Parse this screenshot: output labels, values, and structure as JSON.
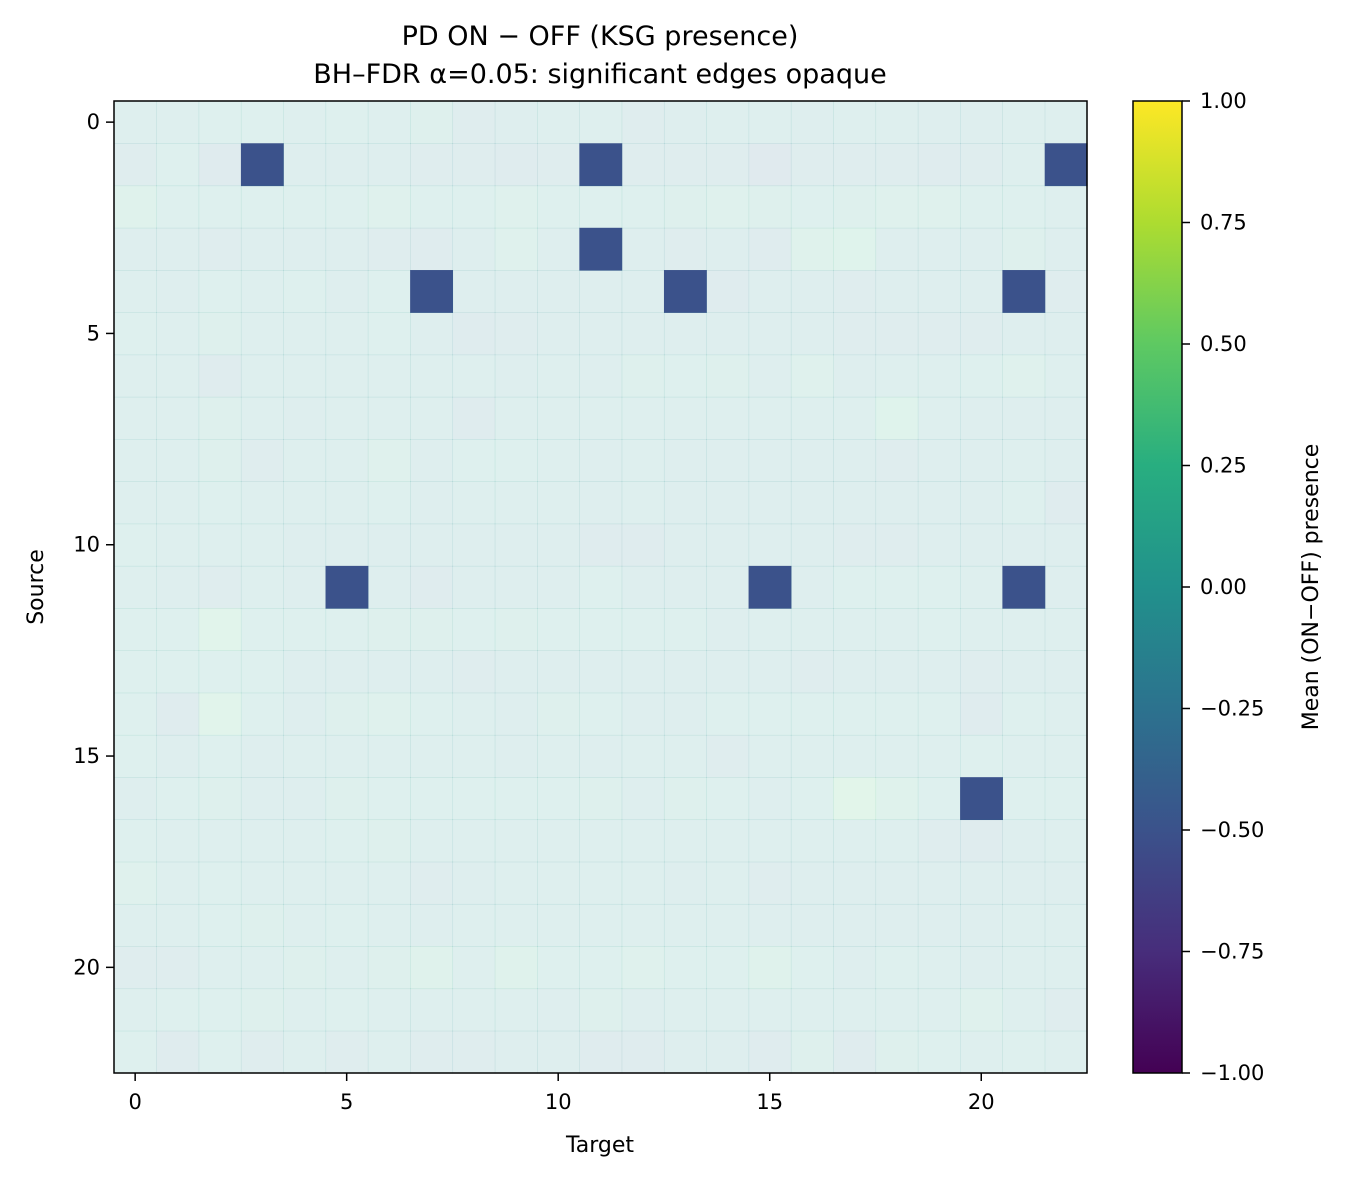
{
  "chart_data": {
    "type": "heatmap",
    "title": "PD ON − OFF (KSG presence)",
    "subtitle": "BH–FDR α=0.05: significant edges opaque",
    "xlabel": "Target",
    "ylabel": "Source",
    "n_rows": 23,
    "n_cols": 23,
    "x_ticks": [
      0,
      5,
      10,
      15,
      20
    ],
    "y_ticks": [
      0,
      5,
      10,
      15,
      20
    ],
    "colorbar": {
      "label": "Mean (ON−OFF) presence",
      "colormap": "viridis",
      "vmin": -1.0,
      "vmax": 1.0,
      "ticks": [
        1.0,
        0.75,
        0.5,
        0.25,
        0.0,
        -0.25,
        -0.5,
        -0.75,
        -1.0
      ],
      "tick_labels": [
        "1.00",
        "0.75",
        "0.50",
        "0.25",
        "0.00",
        "−0.25",
        "−0.50",
        "−0.75",
        "−1.00"
      ]
    },
    "significant_edges": [
      {
        "source": 1,
        "target": 3,
        "value": -0.5
      },
      {
        "source": 1,
        "target": 11,
        "value": -0.5
      },
      {
        "source": 1,
        "target": 22,
        "value": -0.5
      },
      {
        "source": 3,
        "target": 11,
        "value": -0.5
      },
      {
        "source": 4,
        "target": 7,
        "value": -0.5
      },
      {
        "source": 4,
        "target": 13,
        "value": -0.5
      },
      {
        "source": 4,
        "target": 21,
        "value": -0.5
      },
      {
        "source": 11,
        "target": 5,
        "value": -0.5
      },
      {
        "source": 11,
        "target": 15,
        "value": -0.5
      },
      {
        "source": 11,
        "target": 21,
        "value": -0.5
      },
      {
        "source": 16,
        "target": 20,
        "value": -0.5
      }
    ],
    "nonsignificant_alpha": 0.15,
    "values": [
      [
        0.0,
        0.0,
        0.05,
        0.05,
        0.0,
        0.05,
        0.0,
        0.1,
        -0.1,
        -0.05,
        0.0,
        0.0,
        -0.1,
        -0.05,
        0.0,
        0.0,
        -0.05,
        0.0,
        0.0,
        -0.05,
        -0.05,
        0.0,
        0.0
      ],
      [
        -0.1,
        0.05,
        -0.2,
        -0.5,
        -0.05,
        -0.05,
        -0.05,
        -0.1,
        -0.1,
        -0.15,
        -0.1,
        -0.5,
        -0.1,
        -0.1,
        -0.1,
        -0.25,
        -0.1,
        -0.1,
        -0.1,
        -0.15,
        -0.1,
        0.0,
        -0.5
      ],
      [
        0.2,
        0.05,
        0.05,
        0.05,
        0.05,
        0.05,
        0.15,
        0.05,
        0.05,
        0.15,
        0.05,
        0.05,
        0.05,
        0.1,
        0.15,
        0.1,
        0.05,
        0.1,
        0.15,
        0.15,
        0.05,
        0.05,
        0.0
      ],
      [
        -0.05,
        -0.05,
        -0.1,
        -0.05,
        -0.05,
        -0.05,
        -0.1,
        -0.15,
        -0.05,
        0.15,
        -0.05,
        -0.5,
        -0.05,
        -0.1,
        -0.05,
        -0.15,
        0.2,
        0.25,
        -0.05,
        -0.05,
        -0.05,
        0.1,
        -0.05
      ],
      [
        0.0,
        -0.05,
        0.05,
        0.0,
        0.05,
        -0.05,
        0.05,
        -0.5,
        -0.05,
        -0.05,
        -0.05,
        -0.05,
        -0.05,
        -0.5,
        -0.15,
        -0.05,
        -0.05,
        -0.1,
        -0.05,
        -0.05,
        -0.05,
        -0.5,
        -0.1
      ],
      [
        0.05,
        0.0,
        0.1,
        0.0,
        0.0,
        0.0,
        0.05,
        -0.05,
        -0.15,
        -0.1,
        -0.05,
        -0.05,
        -0.05,
        -0.05,
        -0.05,
        -0.05,
        -0.05,
        -0.1,
        -0.1,
        -0.1,
        -0.1,
        -0.05,
        -0.05
      ],
      [
        0.0,
        0.0,
        -0.15,
        0.0,
        0.0,
        0.0,
        0.0,
        0.0,
        0.0,
        -0.05,
        0.0,
        -0.05,
        0.1,
        0.05,
        0.1,
        -0.05,
        0.15,
        -0.05,
        0.0,
        0.0,
        0.05,
        0.15,
        0.0
      ],
      [
        0.0,
        0.0,
        0.1,
        0.0,
        -0.05,
        0.0,
        0.0,
        0.0,
        -0.15,
        0.0,
        0.0,
        0.0,
        0.0,
        0.0,
        0.0,
        0.0,
        0.0,
        0.0,
        0.25,
        0.0,
        -0.05,
        -0.05,
        -0.05
      ],
      [
        0.0,
        0.0,
        0.1,
        -0.1,
        0.0,
        0.0,
        0.15,
        -0.05,
        0.05,
        0.05,
        0.0,
        -0.05,
        0.0,
        -0.05,
        -0.05,
        -0.05,
        -0.05,
        -0.05,
        -0.1,
        -0.05,
        -0.05,
        0.0,
        -0.05
      ],
      [
        0.0,
        0.0,
        0.05,
        0.0,
        0.0,
        0.0,
        0.05,
        -0.05,
        0.0,
        0.0,
        0.0,
        -0.05,
        0.0,
        -0.05,
        -0.05,
        -0.05,
        -0.05,
        -0.05,
        -0.05,
        -0.05,
        -0.05,
        0.05,
        -0.15
      ],
      [
        0.05,
        0.0,
        0.0,
        0.0,
        -0.05,
        -0.05,
        -0.05,
        -0.05,
        -0.05,
        -0.05,
        -0.05,
        -0.15,
        -0.15,
        -0.05,
        -0.05,
        -0.05,
        -0.05,
        -0.1,
        -0.1,
        -0.05,
        -0.05,
        -0.05,
        -0.05
      ],
      [
        0.0,
        -0.05,
        -0.1,
        0.0,
        -0.05,
        -0.5,
        -0.05,
        -0.15,
        -0.05,
        -0.05,
        -0.05,
        0.05,
        -0.05,
        -0.05,
        -0.05,
        -0.5,
        -0.05,
        0.05,
        0.05,
        0.05,
        0.0,
        -0.5,
        -0.05
      ],
      [
        0.05,
        0.05,
        0.3,
        0.05,
        0.05,
        0.05,
        0.1,
        0.1,
        0.05,
        0.1,
        0.05,
        0.05,
        0.05,
        0.05,
        -0.05,
        0.0,
        0.0,
        0.0,
        0.0,
        0.05,
        0.0,
        0.0,
        0.0
      ],
      [
        0.05,
        0.05,
        0.05,
        0.05,
        -0.05,
        -0.05,
        -0.05,
        -0.05,
        -0.1,
        -0.05,
        -0.05,
        -0.05,
        -0.05,
        -0.05,
        -0.05,
        -0.05,
        -0.1,
        -0.05,
        -0.05,
        -0.05,
        -0.1,
        -0.05,
        -0.05
      ],
      [
        0.05,
        -0.15,
        0.3,
        0.05,
        -0.05,
        0.1,
        0.15,
        0.05,
        0.0,
        -0.05,
        0.1,
        0.05,
        -0.05,
        -0.05,
        0.05,
        0.05,
        0.05,
        0.05,
        0.05,
        0.05,
        -0.15,
        0.05,
        0.0
      ],
      [
        0.05,
        -0.05,
        0.05,
        -0.05,
        0.0,
        0.0,
        0.0,
        0.0,
        0.0,
        -0.05,
        0.0,
        -0.05,
        0.0,
        0.0,
        -0.1,
        0.0,
        0.0,
        0.0,
        0.0,
        0.0,
        0.05,
        0.0,
        0.0
      ],
      [
        -0.05,
        0.05,
        0.1,
        -0.05,
        -0.05,
        0.1,
        0.05,
        0.05,
        0.05,
        0.05,
        0.05,
        0.1,
        -0.05,
        0.1,
        0.05,
        -0.05,
        0.05,
        0.35,
        0.2,
        0.05,
        -0.5,
        0.05,
        0.05
      ],
      [
        0.05,
        0.0,
        0.0,
        0.0,
        0.0,
        0.05,
        0.1,
        0.0,
        0.0,
        0.0,
        0.0,
        0.0,
        0.0,
        0.0,
        0.0,
        0.0,
        0.0,
        0.0,
        0.0,
        -0.1,
        -0.15,
        -0.05,
        0.0
      ],
      [
        0.15,
        0.0,
        0.05,
        0.0,
        0.0,
        0.0,
        0.0,
        -0.1,
        -0.05,
        0.0,
        0.0,
        0.0,
        0.0,
        -0.05,
        0.0,
        -0.1,
        -0.05,
        -0.05,
        -0.05,
        -0.05,
        -0.05,
        -0.05,
        -0.05
      ],
      [
        0.0,
        0.0,
        0.05,
        0.1,
        0.0,
        0.05,
        0.0,
        -0.05,
        0.0,
        0.0,
        0.0,
        0.0,
        0.0,
        0.0,
        0.0,
        -0.05,
        -0.05,
        -0.05,
        -0.05,
        -0.05,
        -0.05,
        0.0,
        0.0
      ],
      [
        -0.1,
        -0.1,
        0.0,
        0.0,
        0.1,
        0.0,
        0.1,
        0.2,
        0.0,
        0.2,
        0.05,
        0.05,
        0.15,
        0.05,
        0.05,
        0.2,
        0.05,
        -0.05,
        0.05,
        0.0,
        -0.05,
        0.0,
        0.0
      ],
      [
        0.0,
        0.05,
        0.05,
        0.1,
        0.0,
        0.05,
        0.0,
        0.0,
        0.0,
        0.0,
        -0.05,
        0.1,
        -0.05,
        0.0,
        0.0,
        0.0,
        0.0,
        0.0,
        0.0,
        0.0,
        0.15,
        0.0,
        -0.1
      ],
      [
        0.05,
        -0.15,
        0.05,
        -0.1,
        0.0,
        -0.1,
        0.0,
        -0.1,
        -0.1,
        -0.05,
        -0.05,
        -0.15,
        -0.15,
        -0.05,
        -0.05,
        -0.15,
        0.1,
        -0.15,
        0.1,
        0.05,
        0.0,
        0.05,
        0.0
      ]
    ]
  }
}
